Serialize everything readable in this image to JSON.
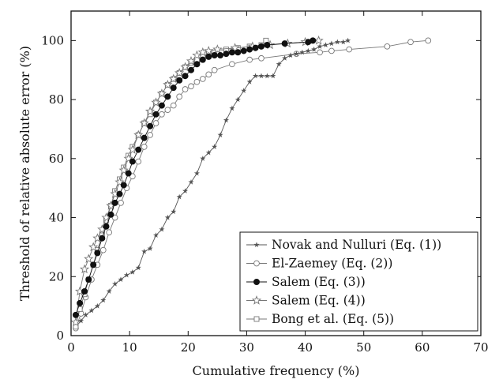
{
  "chart_data": {
    "type": "line",
    "xlabel": "Cumulative frequency (%)",
    "ylabel": "Threshold of relative absolute error (%)",
    "xlim": [
      0,
      70
    ],
    "ylim": [
      0,
      110
    ],
    "xticks": [
      0,
      10,
      20,
      30,
      40,
      50,
      60,
      70
    ],
    "yticks": [
      0,
      20,
      40,
      60,
      80,
      100
    ],
    "grid": false,
    "legend_position": "bottom-right",
    "series": [
      {
        "name": "Novak and Nulluri (Eq. (1))",
        "marker": "star-small",
        "color": "#555555",
        "x": [
          0.8,
          1.7,
          2.5,
          3.5,
          4.5,
          5.5,
          6.5,
          7.5,
          8.5,
          9.5,
          10.5,
          11.5,
          12.5,
          13.5,
          14.5,
          15.5,
          16.5,
          17.5,
          18.5,
          19.5,
          20.5,
          21.5,
          22.5,
          23.5,
          24.5,
          25.5,
          26.5,
          27.5,
          28.5,
          29.5,
          30.5,
          31.5,
          32.5,
          33.5,
          34.5,
          35.5,
          36.5,
          37.5,
          38.5,
          39.5,
          40.5,
          41.5,
          42.5,
          43.5,
          44.5,
          45.5,
          46.5,
          47.3
        ],
        "y": [
          3,
          5,
          7,
          8.5,
          10,
          12,
          15,
          17.5,
          19,
          20.5,
          21.5,
          23,
          28.5,
          29.5,
          34,
          36,
          40,
          42,
          47,
          49,
          52,
          55,
          60,
          62,
          64,
          68,
          73,
          77,
          80,
          83,
          86,
          88,
          88,
          88,
          88,
          92,
          94,
          95,
          95.5,
          96,
          96.5,
          97,
          98,
          98.5,
          99,
          99.5,
          99.5,
          100
        ]
      },
      {
        "name": "El-Zaemey (Eq. (2))",
        "marker": "open-circle",
        "color": "#777777",
        "x": [
          0.8,
          1.7,
          2.5,
          3.5,
          4.5,
          5.5,
          6.5,
          7.5,
          8.5,
          9.5,
          10.5,
          11.5,
          12.5,
          13.5,
          14.5,
          15.5,
          16.5,
          17.5,
          18.5,
          19.5,
          20.5,
          21.5,
          22.5,
          23.5,
          24.5,
          27.5,
          30.5,
          32.5,
          38.5,
          42.5,
          44.5,
          47.5,
          54.0,
          58.0,
          61.0
        ],
        "y": [
          2.5,
          7.5,
          13,
          19,
          24,
          29,
          35,
          40,
          45,
          50,
          54,
          59,
          64,
          68,
          72,
          75,
          76.5,
          78,
          81,
          83.5,
          84.5,
          86,
          87,
          88.5,
          90,
          92,
          93.5,
          94,
          95.5,
          96,
          96.5,
          97,
          98,
          99.5,
          100
        ]
      },
      {
        "name": "Salem (Eq. (3))",
        "marker": "filled-circle",
        "color": "#111111",
        "x": [
          0.8,
          1.5,
          2.3,
          3.0,
          3.8,
          4.5,
          5.3,
          6.0,
          6.8,
          7.5,
          8.3,
          9.0,
          9.8,
          10.5,
          11.5,
          12.5,
          13.5,
          14.5,
          15.5,
          16.5,
          17.5,
          18.5,
          19.5,
          20.5,
          21.5,
          22.5,
          23.5,
          24.5,
          25.5,
          26.5,
          27.5,
          28.5,
          29.5,
          30.5,
          31.5,
          32.5,
          33.5,
          36.5,
          40.5,
          41.3
        ],
        "y": [
          7,
          11,
          15,
          19,
          24,
          28,
          33,
          37,
          41,
          45,
          48,
          51,
          55,
          59,
          63,
          67,
          71,
          75,
          78,
          81,
          84,
          86.5,
          88,
          90,
          92,
          93.5,
          94.5,
          95,
          95,
          95.5,
          96,
          96,
          96.5,
          97,
          97.5,
          98,
          98.5,
          99,
          99.5,
          100
        ]
      },
      {
        "name": "Salem (Eq. (4))",
        "marker": "open-star",
        "color": "#777777",
        "x": [
          0.8,
          1.5,
          2.3,
          3.0,
          3.8,
          4.5,
          5.3,
          6.0,
          6.8,
          7.5,
          8.3,
          9.0,
          9.8,
          10.5,
          11.5,
          12.5,
          13.5,
          14.5,
          15.5,
          16.5,
          17.5,
          18.5,
          19.5,
          20.5,
          21.5,
          22.5,
          23.5,
          25.0,
          28.0,
          31.0,
          34.0,
          37.0,
          40.0,
          42.3
        ],
        "y": [
          4.5,
          15,
          22.5,
          26,
          30,
          33,
          36,
          40,
          44,
          48,
          52,
          56,
          60,
          63,
          68,
          72,
          76,
          79,
          82,
          85,
          87,
          89,
          91,
          93,
          95,
          96,
          96.5,
          97,
          97.5,
          98,
          98.5,
          99,
          99.5,
          100
        ]
      },
      {
        "name": "Bong et al. (Eq. (5))",
        "marker": "open-square",
        "color": "#777777",
        "x": [
          0.8,
          1.5,
          2.3,
          3.0,
          3.8,
          4.5,
          5.3,
          6.0,
          6.8,
          7.5,
          8.3,
          9.0,
          9.8,
          10.5,
          11.5,
          12.5,
          13.5,
          14.5,
          15.5,
          16.5,
          17.5,
          18.5,
          19.5,
          20.5,
          21.5,
          22.5,
          23.5,
          24.5,
          26.5,
          28.5,
          30.5,
          32.5,
          33.3
        ],
        "y": [
          3,
          9,
          14,
          19,
          24,
          29,
          34,
          39,
          44,
          49,
          53,
          57,
          61,
          64,
          68,
          72,
          75,
          79,
          82,
          85,
          87,
          89,
          91,
          92.5,
          93.5,
          94.5,
          95.5,
          96,
          97,
          97.5,
          98,
          98.5,
          100
        ]
      }
    ]
  }
}
